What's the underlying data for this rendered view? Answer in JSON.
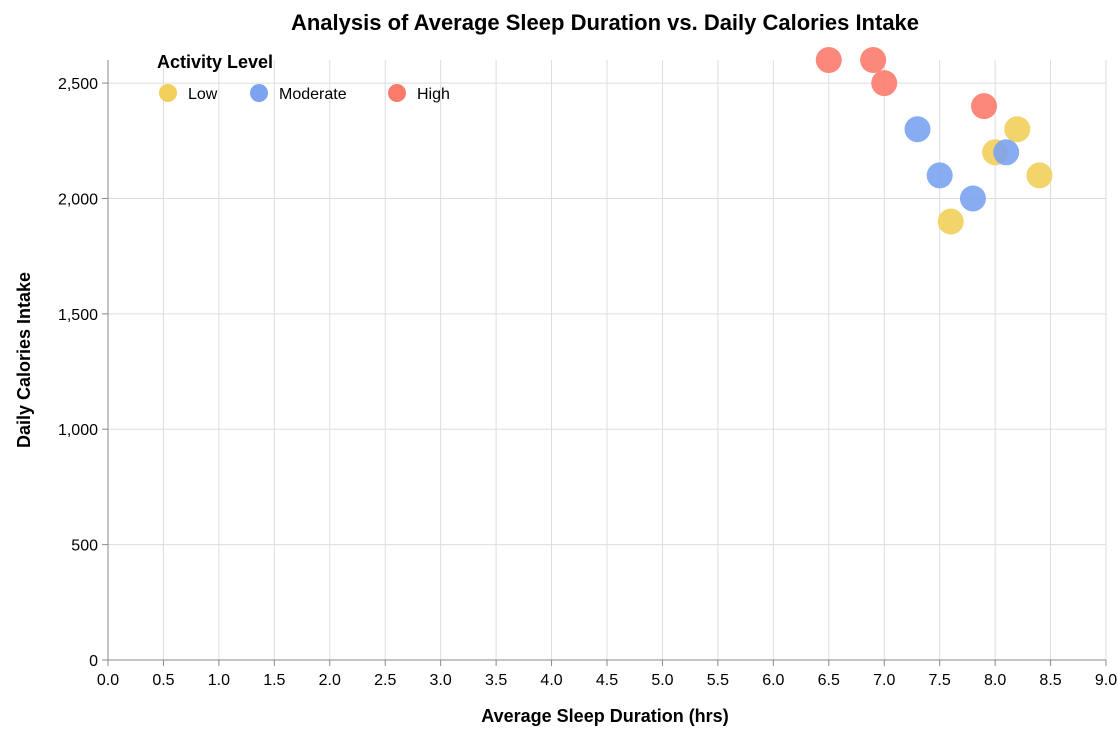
{
  "chart_data": {
    "type": "scatter",
    "title": "Analysis of Average Sleep Duration vs. Daily Calories Intake",
    "xlabel": "Average Sleep Duration (hrs)",
    "ylabel": "Daily Calories Intake",
    "xlim": [
      0,
      9
    ],
    "ylim": [
      0,
      2600
    ],
    "x_ticks": [
      "0.0",
      "0.5",
      "1.0",
      "1.5",
      "2.0",
      "2.5",
      "3.0",
      "3.5",
      "4.0",
      "4.5",
      "5.0",
      "5.5",
      "6.0",
      "6.5",
      "7.0",
      "7.5",
      "8.0",
      "8.5",
      "9.0"
    ],
    "y_ticks": [
      "0",
      "500",
      "1,000",
      "1,500",
      "2,000",
      "2,500"
    ],
    "grid": true,
    "legend": {
      "title": "Activity Level",
      "placement": "top-left",
      "entries": [
        {
          "label": "Low",
          "color": "#f2cf5b"
        },
        {
          "label": "Moderate",
          "color": "#7ba3ef"
        },
        {
          "label": "High",
          "color": "#fb7b6b"
        }
      ]
    },
    "series": [
      {
        "name": "Low",
        "color": "#f2cf5b",
        "points": [
          {
            "x": 7.6,
            "y": 1900
          },
          {
            "x": 8.0,
            "y": 2200
          },
          {
            "x": 8.2,
            "y": 2300
          },
          {
            "x": 8.4,
            "y": 2100
          }
        ]
      },
      {
        "name": "Moderate",
        "color": "#7ba3ef",
        "points": [
          {
            "x": 7.3,
            "y": 2300
          },
          {
            "x": 7.5,
            "y": 2100
          },
          {
            "x": 7.8,
            "y": 2000
          },
          {
            "x": 8.1,
            "y": 2200
          }
        ]
      },
      {
        "name": "High",
        "color": "#fb7b6b",
        "points": [
          {
            "x": 6.5,
            "y": 2600
          },
          {
            "x": 6.9,
            "y": 2600
          },
          {
            "x": 7.0,
            "y": 2500
          },
          {
            "x": 7.9,
            "y": 2400
          }
        ]
      }
    ]
  }
}
